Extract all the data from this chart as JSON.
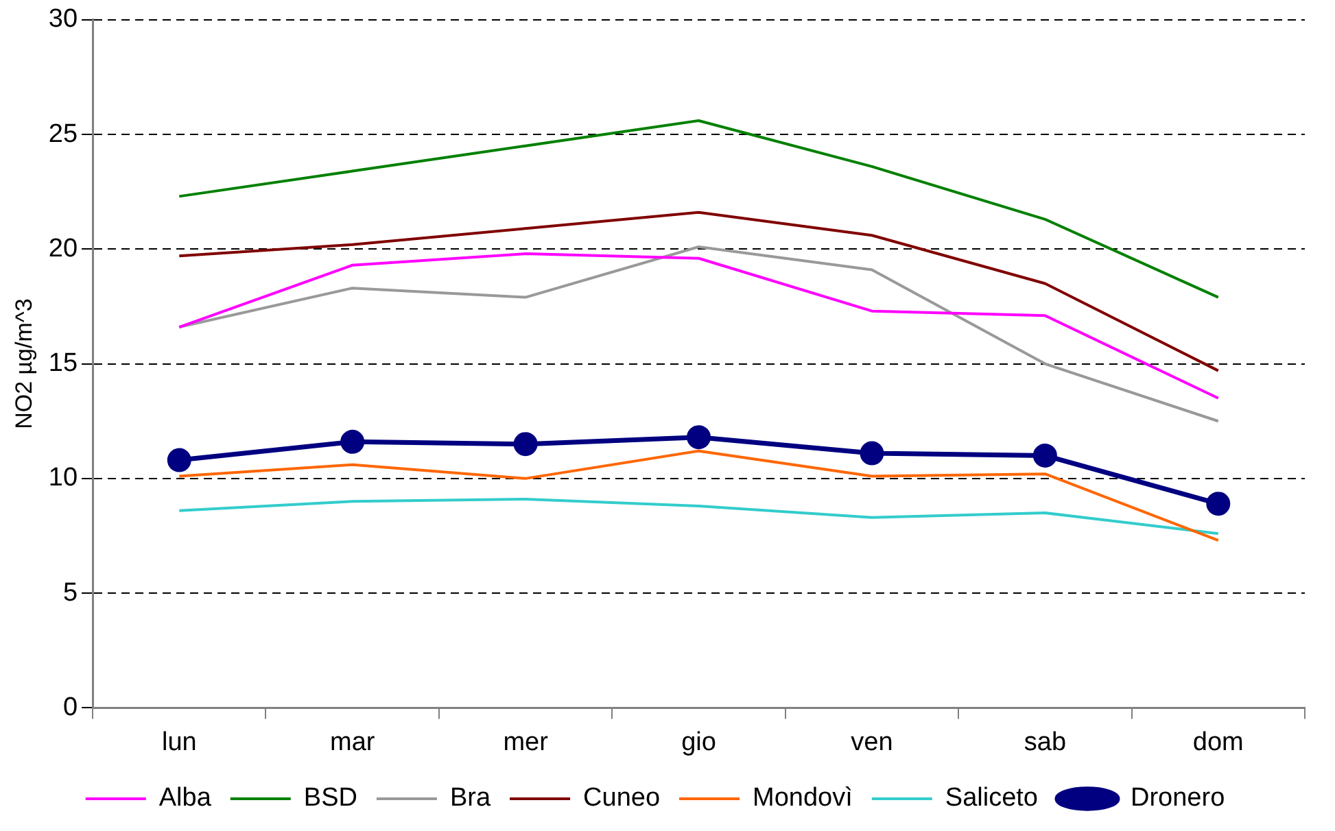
{
  "chart_data": {
    "type": "line",
    "ylabel": "NO2 µg/m^3",
    "categories": [
      "lun",
      "mar",
      "mer",
      "gio",
      "ven",
      "sab",
      "dom"
    ],
    "ylim": [
      0,
      30
    ],
    "yticks": [
      0,
      5,
      10,
      15,
      20,
      25,
      30
    ],
    "grid": "y",
    "legend": "bottom",
    "marker": "none",
    "line_style": "solid",
    "series": [
      {
        "name": "Alba",
        "color": "#ff00ff",
        "values": [
          16.6,
          19.3,
          19.8,
          19.6,
          17.3,
          17.1,
          13.5
        ]
      },
      {
        "name": "BSD",
        "color": "#008000",
        "values": [
          22.3,
          23.4,
          24.5,
          25.6,
          23.6,
          21.3,
          17.9
        ]
      },
      {
        "name": "Bra",
        "color": "#999999",
        "values": [
          16.6,
          18.3,
          17.9,
          20.1,
          19.1,
          15.0,
          12.5
        ]
      },
      {
        "name": "Cuneo",
        "color": "#800000",
        "values": [
          19.7,
          20.2,
          20.9,
          21.6,
          20.6,
          18.5,
          14.7
        ]
      },
      {
        "name": "Mondovì",
        "color": "#ff6600",
        "values": [
          10.1,
          10.6,
          10.0,
          11.2,
          10.1,
          10.2,
          7.3
        ]
      },
      {
        "name": "Saliceto",
        "color": "#33cccc",
        "values": [
          8.6,
          9.0,
          9.1,
          8.8,
          8.3,
          8.5,
          7.6
        ]
      },
      {
        "name": "Dronero",
        "color": "#000080",
        "marker": "circle",
        "values": [
          10.8,
          11.6,
          11.5,
          11.8,
          11.1,
          11.0,
          8.9
        ]
      }
    ]
  }
}
